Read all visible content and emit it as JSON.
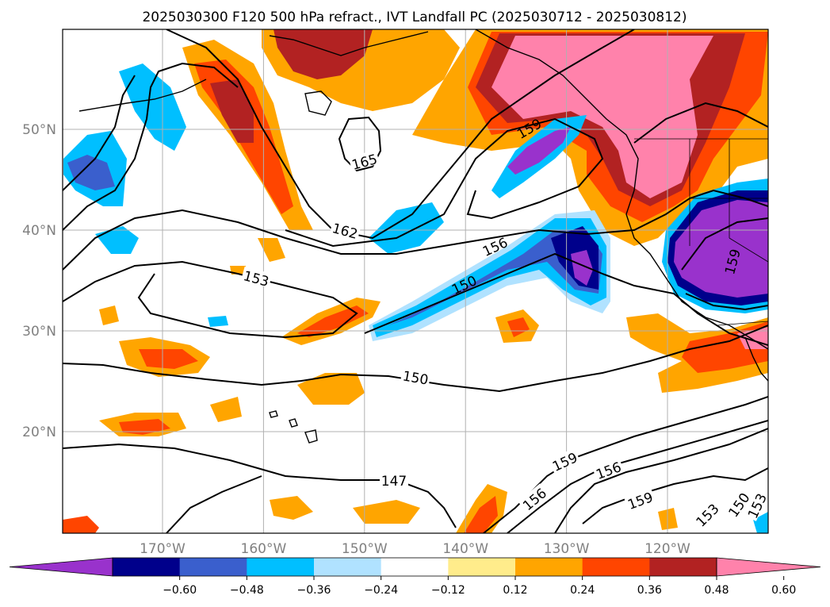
{
  "title": "2025030300 F120 500 hPa refract., IVT Landfall PC (2025030712 - 2025030812)",
  "map": {
    "lon_ticks": [
      {
        "value": -170,
        "label": "170°W"
      },
      {
        "value": -160,
        "label": "160°W"
      },
      {
        "value": -150,
        "label": "150°W"
      },
      {
        "value": -140,
        "label": "140°W"
      },
      {
        "value": -130,
        "label": "130°W"
      },
      {
        "value": -120,
        "label": "120°W"
      }
    ],
    "lat_ticks": [
      {
        "value": 20,
        "label": "20°N"
      },
      {
        "value": 30,
        "label": "30°N"
      },
      {
        "value": 40,
        "label": "40°N"
      },
      {
        "value": 50,
        "label": "50°N"
      }
    ],
    "contour_labels": [
      "165",
      "162",
      "159",
      "156",
      "153",
      "150",
      "147",
      "159",
      "156",
      "153",
      "150",
      "159",
      "156",
      "153",
      "150",
      "159"
    ],
    "colorbar": {
      "tick_labels": [
        "−0.60",
        "−0.48",
        "−0.36",
        "−0.24",
        "−0.12",
        "0.12",
        "0.24",
        "0.36",
        "0.48",
        "0.60"
      ],
      "colors": [
        "#9932cc",
        "#00008b",
        "#3a5fcd",
        "#00bfff",
        "#b0e2ff",
        "#ffffff",
        "#ffec8b",
        "#ffa500",
        "#ff4500",
        "#b22222",
        "#ff82ab"
      ]
    }
  }
}
